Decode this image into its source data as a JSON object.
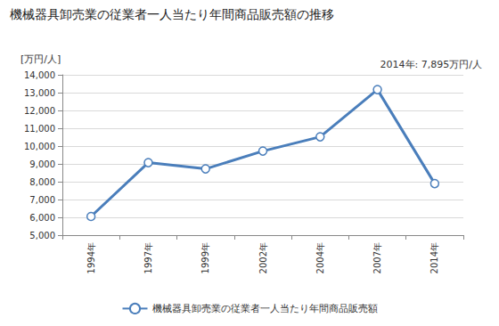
{
  "chart_data": {
    "type": "line",
    "title": "機械器具卸売業の従業者一人当たり年間商品販売額の推移",
    "ylabel": "[万円/人]",
    "annotation": "2014年: 7,895万円/人",
    "categories": [
      "1994年",
      "1997年",
      "1999年",
      "2002年",
      "2004年",
      "2007年",
      "2014年"
    ],
    "series": [
      {
        "name": "機械器具卸売業の従業者一人当たり年間商品販売額",
        "color": "#4a7ebb",
        "marker": "circle",
        "values": [
          6050,
          9070,
          8720,
          9720,
          10520,
          13170,
          7895
        ]
      }
    ],
    "ylim": [
      5000,
      14000
    ],
    "yticks": [
      {
        "value": 5000,
        "label": "5,000"
      },
      {
        "value": 6000,
        "label": "6,000"
      },
      {
        "value": 7000,
        "label": "7,000"
      },
      {
        "value": 8000,
        "label": "8,000"
      },
      {
        "value": 9000,
        "label": "9,000"
      },
      {
        "value": 10000,
        "label": "10,000"
      },
      {
        "value": 11000,
        "label": "11,000"
      },
      {
        "value": 12000,
        "label": "12,000"
      },
      {
        "value": 13000,
        "label": "13,000"
      },
      {
        "value": 14000,
        "label": "14,000"
      }
    ],
    "grid": true,
    "legend": "bottom"
  }
}
